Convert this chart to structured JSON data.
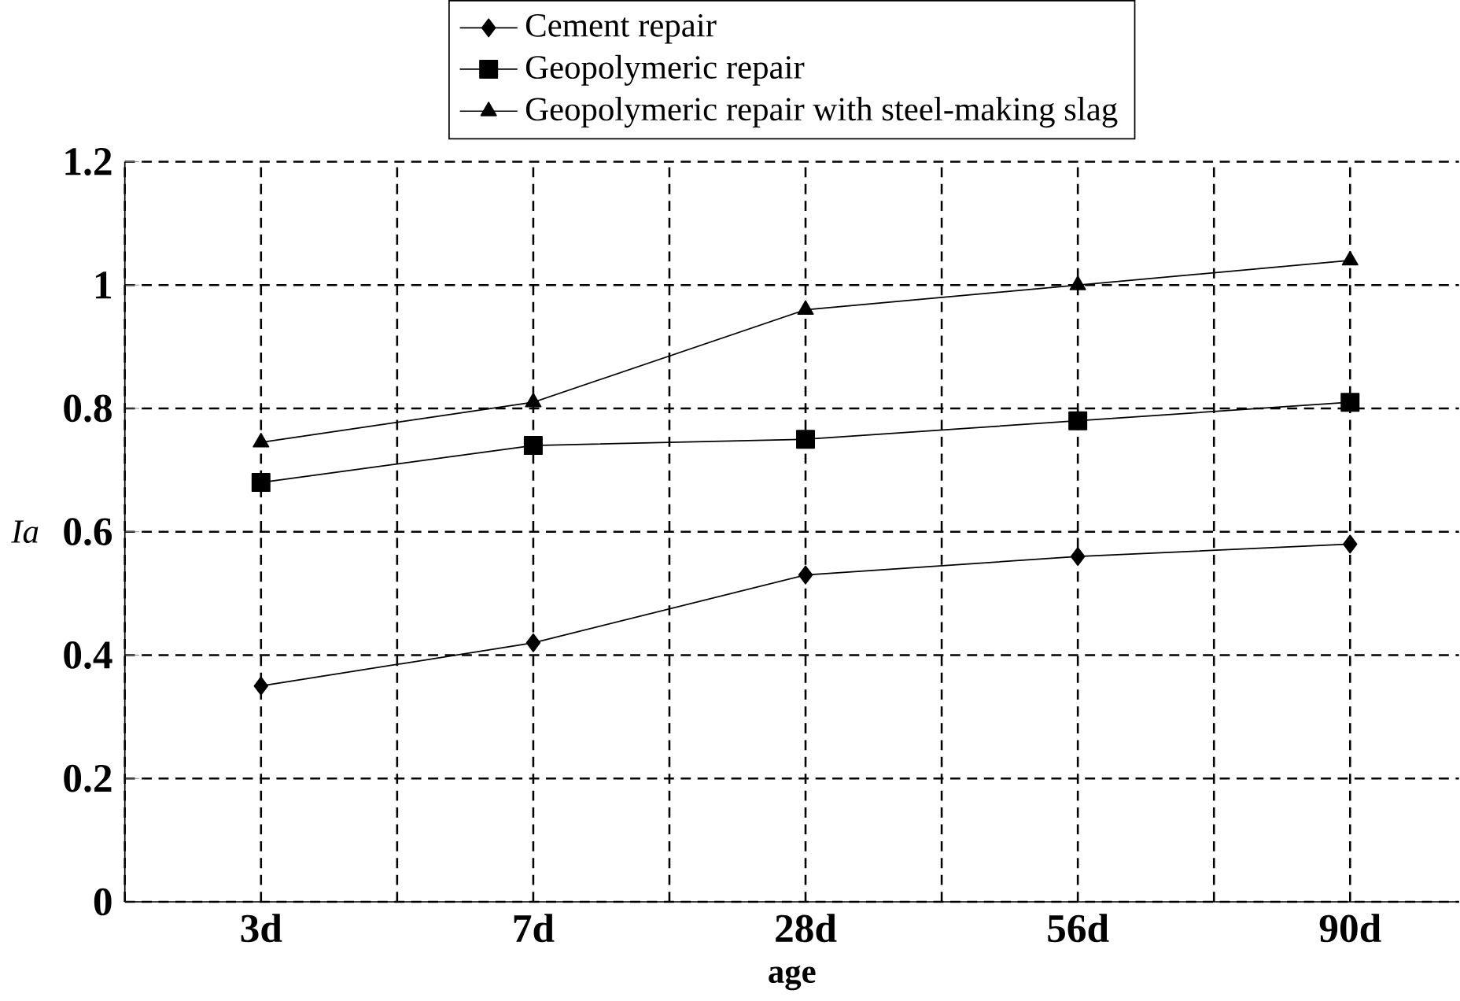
{
  "chart_data": {
    "type": "line",
    "xlabel": "age",
    "ylabel": "*Ia*",
    "categories": [
      "3d",
      "7d",
      "28d",
      "56d",
      "90d"
    ],
    "series": [
      {
        "name": "Cement repair",
        "color": "#000000",
        "marker": "diamond",
        "values": [
          0.35,
          0.42,
          0.53,
          0.56,
          0.58
        ]
      },
      {
        "name": "Geopolymeric repair",
        "color": "#000000",
        "marker": "square",
        "values": [
          0.68,
          0.74,
          0.75,
          0.78,
          0.81
        ]
      },
      {
        "name": "Geopolymeric repair with steel-making slag",
        "color": "#000000",
        "marker": "triangle",
        "values": [
          0.745,
          0.81,
          0.96,
          1.0,
          1.04
        ]
      }
    ],
    "ylim": [
      0,
      1.2
    ],
    "yticks": [
      0,
      0.2,
      0.4,
      0.6,
      0.8,
      1,
      1.2
    ],
    "grid": true,
    "legend": "top",
    "line_style": "solid"
  }
}
